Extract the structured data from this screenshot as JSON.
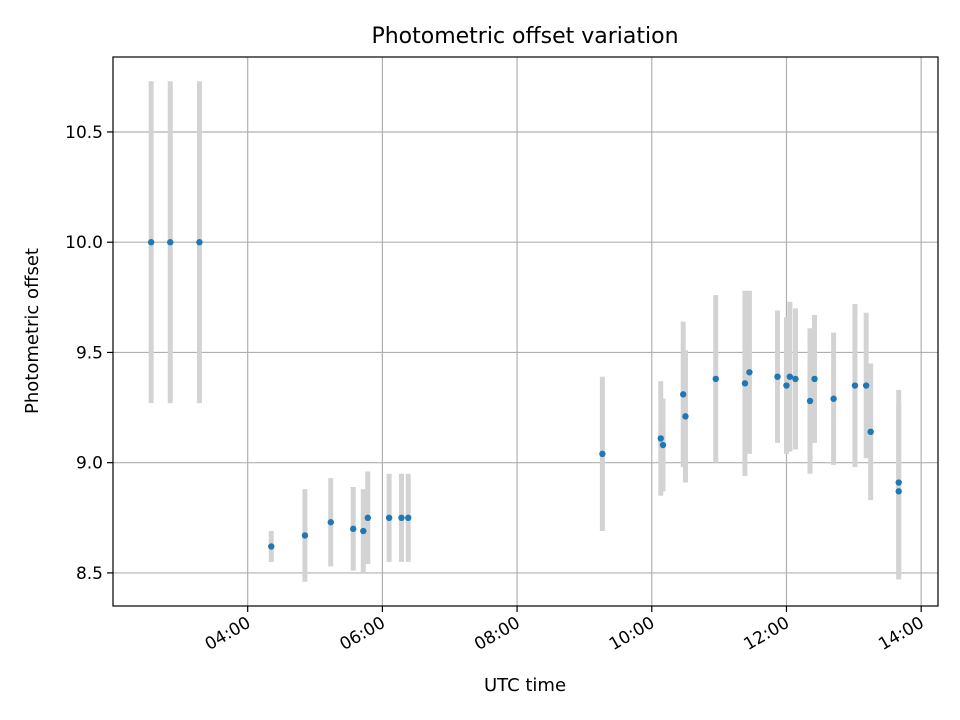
{
  "chart_data": {
    "type": "scatter",
    "title": "Photometric offset variation",
    "xlabel": "UTC time",
    "ylabel": "Photometric offset",
    "x_axis_type": "time",
    "xlim": [
      "02:00",
      "14:15"
    ],
    "ylim": [
      8.35,
      10.84
    ],
    "grid": true,
    "legend": "none",
    "x_ticks": [
      "04:00",
      "06:00",
      "08:00",
      "10:00",
      "12:00",
      "14:00"
    ],
    "y_ticks": [
      8.5,
      9.0,
      9.5,
      10.0,
      10.5
    ],
    "y_tick_labels": [
      "8.5",
      "9.0",
      "9.5",
      "10.0",
      "10.5"
    ],
    "colors": {
      "point": "#1f77b4",
      "errorbar": "#d3d3d3",
      "grid": "#b0b0b0"
    },
    "series": [
      {
        "points": [
          {
            "x": "02:34",
            "y": 10.0,
            "yerr": 0.73
          },
          {
            "x": "02:51",
            "y": 10.0,
            "yerr": 0.73
          },
          {
            "x": "03:17",
            "y": 10.0,
            "yerr": 0.73
          },
          {
            "x": "04:21",
            "y": 8.62,
            "yerr": 0.07
          },
          {
            "x": "04:51",
            "y": 8.67,
            "yerr": 0.21
          },
          {
            "x": "05:14",
            "y": 8.73,
            "yerr": 0.2
          },
          {
            "x": "05:34",
            "y": 8.7,
            "yerr": 0.19
          },
          {
            "x": "05:43",
            "y": 8.69,
            "yerr": 0.19
          },
          {
            "x": "05:47",
            "y": 8.75,
            "yerr": 0.21
          },
          {
            "x": "06:06",
            "y": 8.75,
            "yerr": 0.2
          },
          {
            "x": "06:17",
            "y": 8.75,
            "yerr": 0.2
          },
          {
            "x": "06:23",
            "y": 8.75,
            "yerr": 0.2
          },
          {
            "x": "09:16",
            "y": 9.04,
            "yerr": 0.35
          },
          {
            "x": "10:08",
            "y": 9.11,
            "yerr": 0.26
          },
          {
            "x": "10:10",
            "y": 9.08,
            "yerr": 0.21
          },
          {
            "x": "10:28",
            "y": 9.31,
            "yerr": 0.33
          },
          {
            "x": "10:30",
            "y": 9.21,
            "yerr": 0.3
          },
          {
            "x": "10:57",
            "y": 9.38,
            "yerr": 0.38
          },
          {
            "x": "11:23",
            "y": 9.36,
            "yerr": 0.42
          },
          {
            "x": "11:27",
            "y": 9.41,
            "yerr": 0.37
          },
          {
            "x": "11:52",
            "y": 9.39,
            "yerr": 0.3
          },
          {
            "x": "12:00",
            "y": 9.35,
            "yerr": 0.31
          },
          {
            "x": "12:03",
            "y": 9.39,
            "yerr": 0.34
          },
          {
            "x": "12:08",
            "y": 9.38,
            "yerr": 0.32
          },
          {
            "x": "12:21",
            "y": 9.28,
            "yerr": 0.33
          },
          {
            "x": "12:25",
            "y": 9.38,
            "yerr": 0.29
          },
          {
            "x": "12:42",
            "y": 9.29,
            "yerr": 0.3
          },
          {
            "x": "13:01",
            "y": 9.35,
            "yerr": 0.37
          },
          {
            "x": "13:11",
            "y": 9.35,
            "yerr": 0.33
          },
          {
            "x": "13:15",
            "y": 9.14,
            "yerr": 0.31
          },
          {
            "x": "13:40",
            "y": 8.91,
            "yerr": 0.42
          },
          {
            "x": "13:40",
            "y": 8.87,
            "yerr": 0.4
          }
        ]
      }
    ]
  }
}
